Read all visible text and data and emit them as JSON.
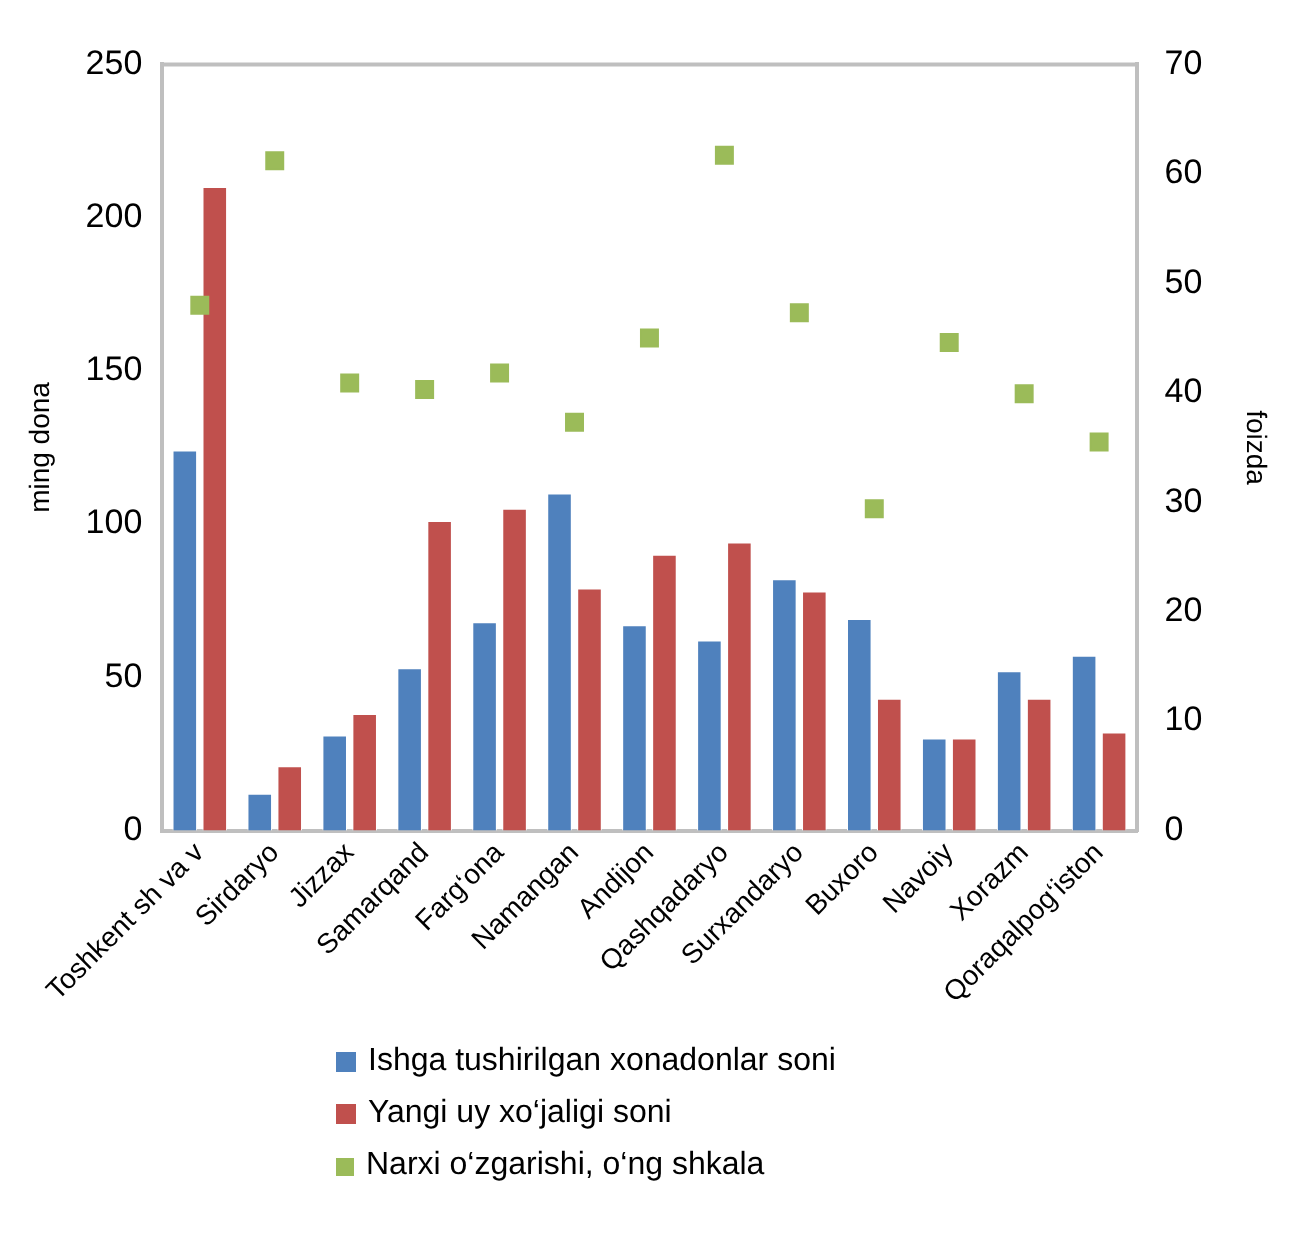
{
  "chart_data": {
    "type": "bar",
    "ylabel": "ming dona",
    "y2label": "foizda",
    "categories": [
      "Toshkent sh va v",
      "Sirdaryo",
      "Jizzax",
      "Samarqand",
      "Farg‘ona",
      "Namangan",
      "Andijon",
      "Qashqadaryo",
      "Surxandaryo",
      "Buxoro",
      "Navoiy",
      "Xorazm",
      "Qoraqalpog‘iston"
    ],
    "series": [
      {
        "name": "Ishga tushirilgan xonadonlar soni",
        "color": "#4f81bd",
        "values": [
          124,
          12,
          31,
          53,
          68,
          110,
          67,
          62,
          82,
          69,
          30,
          52,
          57
        ]
      },
      {
        "name": "Yangi uy xo‘jaligi soni",
        "color": "#c0504d",
        "values": [
          210,
          21,
          38,
          101,
          105,
          79,
          90,
          94,
          78,
          43,
          30,
          43,
          32
        ]
      },
      {
        "name": "Narxi o‘zgarishi, o‘ng shkala",
        "type": "scatter",
        "axis": "y2",
        "marker": "square",
        "color": "#9bbb59",
        "values": [
          48,
          61.2,
          40.9,
          40.3,
          41.8,
          37.3,
          45,
          61.7,
          47.3,
          29.4,
          44.6,
          39.9,
          35.5
        ]
      }
    ],
    "ylim": [
      0,
      250
    ],
    "yticks": [
      0,
      50,
      100,
      150,
      200,
      250
    ],
    "y2lim": [
      0,
      70
    ],
    "y2ticks": [
      0,
      10,
      20,
      30,
      40,
      50,
      60,
      70
    ],
    "grid": false,
    "legend": "bottom"
  }
}
